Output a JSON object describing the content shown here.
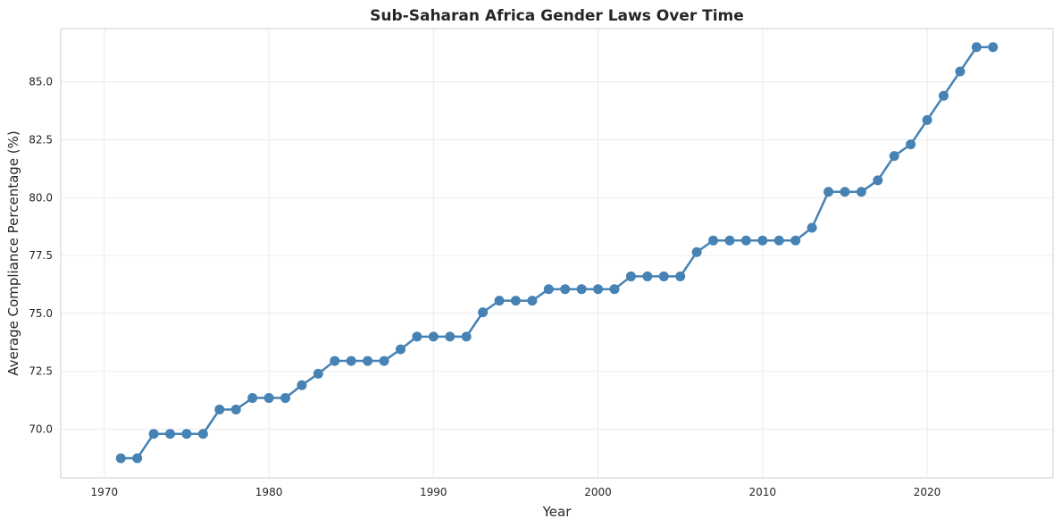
{
  "chart_data": {
    "type": "line",
    "title": "Sub-Saharan Africa Gender Laws Over Time",
    "xlabel": "Year",
    "ylabel": "Average Compliance Percentage (%)",
    "xlim": [
      1967.35,
      2027.65
    ],
    "ylim": [
      67.9,
      87.3
    ],
    "xticks": [
      1970,
      1980,
      1990,
      2000,
      2010,
      2020
    ],
    "yticks": [
      70.0,
      72.5,
      75.0,
      77.5,
      80.0,
      82.5,
      85.0
    ],
    "xtick_labels": [
      "1970",
      "1980",
      "1990",
      "2000",
      "2010",
      "2020"
    ],
    "ytick_labels": [
      "70.0",
      "72.5",
      "75.0",
      "77.5",
      "80.0",
      "82.5",
      "85.0"
    ],
    "grid": true,
    "legend": "none",
    "series": [
      {
        "color": "#4682b4",
        "marker": "circle",
        "x": [
          1971,
          1972,
          1973,
          1974,
          1975,
          1976,
          1977,
          1978,
          1979,
          1980,
          1981,
          1982,
          1983,
          1984,
          1985,
          1986,
          1987,
          1988,
          1989,
          1990,
          1991,
          1992,
          1993,
          1994,
          1995,
          1996,
          1997,
          1998,
          1999,
          2000,
          2001,
          2002,
          2003,
          2004,
          2005,
          2006,
          2007,
          2008,
          2009,
          2010,
          2011,
          2012,
          2013,
          2014,
          2015,
          2016,
          2017,
          2018,
          2019,
          2020,
          2021,
          2022,
          2023,
          2024
        ],
        "values": [
          68.75,
          68.75,
          69.8,
          69.8,
          69.8,
          69.8,
          70.85,
          70.85,
          71.35,
          71.35,
          71.35,
          71.9,
          72.4,
          72.95,
          72.95,
          72.95,
          72.95,
          73.45,
          74.0,
          74.0,
          74.0,
          74.0,
          75.05,
          75.55,
          75.55,
          75.55,
          76.05,
          76.05,
          76.05,
          76.05,
          76.05,
          76.6,
          76.6,
          76.6,
          76.6,
          77.65,
          78.15,
          78.15,
          78.15,
          78.15,
          78.15,
          78.15,
          78.7,
          80.25,
          80.25,
          80.25,
          80.75,
          81.8,
          82.3,
          83.35,
          84.4,
          85.45,
          86.5,
          86.5
        ]
      }
    ]
  }
}
